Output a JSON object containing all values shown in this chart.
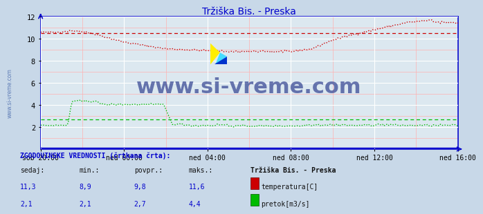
{
  "title": "Tržiška Bis. - Preska",
  "bg_color": "#c8d8e8",
  "plot_bg_color": "#dce8f0",
  "grid_color_major": "#ffffff",
  "grid_color_minor": "#ffb0b0",
  "x_ticks_labels": [
    "sob 20:00",
    "ned 00:00",
    "ned 04:00",
    "ned 08:00",
    "ned 12:00",
    "ned 16:00"
  ],
  "x_ticks_pos": [
    0.0,
    0.2,
    0.4,
    0.6,
    0.8,
    1.0
  ],
  "y_min": 0,
  "y_max": 12,
  "y_ticks": [
    2,
    4,
    6,
    8,
    10,
    12
  ],
  "temp_color": "#cc0000",
  "flow_color": "#00bb00",
  "height_color": "#0000cc",
  "watermark_text": "www.si-vreme.com",
  "watermark_color": "#223388",
  "footer_title": "ZGODOVINSKE VREDNOSTI (črtkana črta):",
  "footer_cols": [
    "sedaj:",
    "min.:",
    "povpr.:",
    "maks.:"
  ],
  "footer_temp_vals": [
    "11,3",
    "8,9",
    "9,8",
    "11,6"
  ],
  "footer_flow_vals": [
    "2,1",
    "2,1",
    "2,7",
    "4,4"
  ],
  "footer_station": "Tržiška Bis. - Preska",
  "footer_temp_label": "temperatura[C]",
  "footer_flow_label": "pretok[m3/s]",
  "footer_temp_color": "#cc0000",
  "footer_flow_color": "#00bb00",
  "axis_color": "#0000cc",
  "title_color": "#0000cc",
  "sidebar_text": "www.si-vreme.com",
  "sidebar_color": "#4466aa",
  "hist_temp_val": 10.5,
  "hist_flow_val": 2.7
}
